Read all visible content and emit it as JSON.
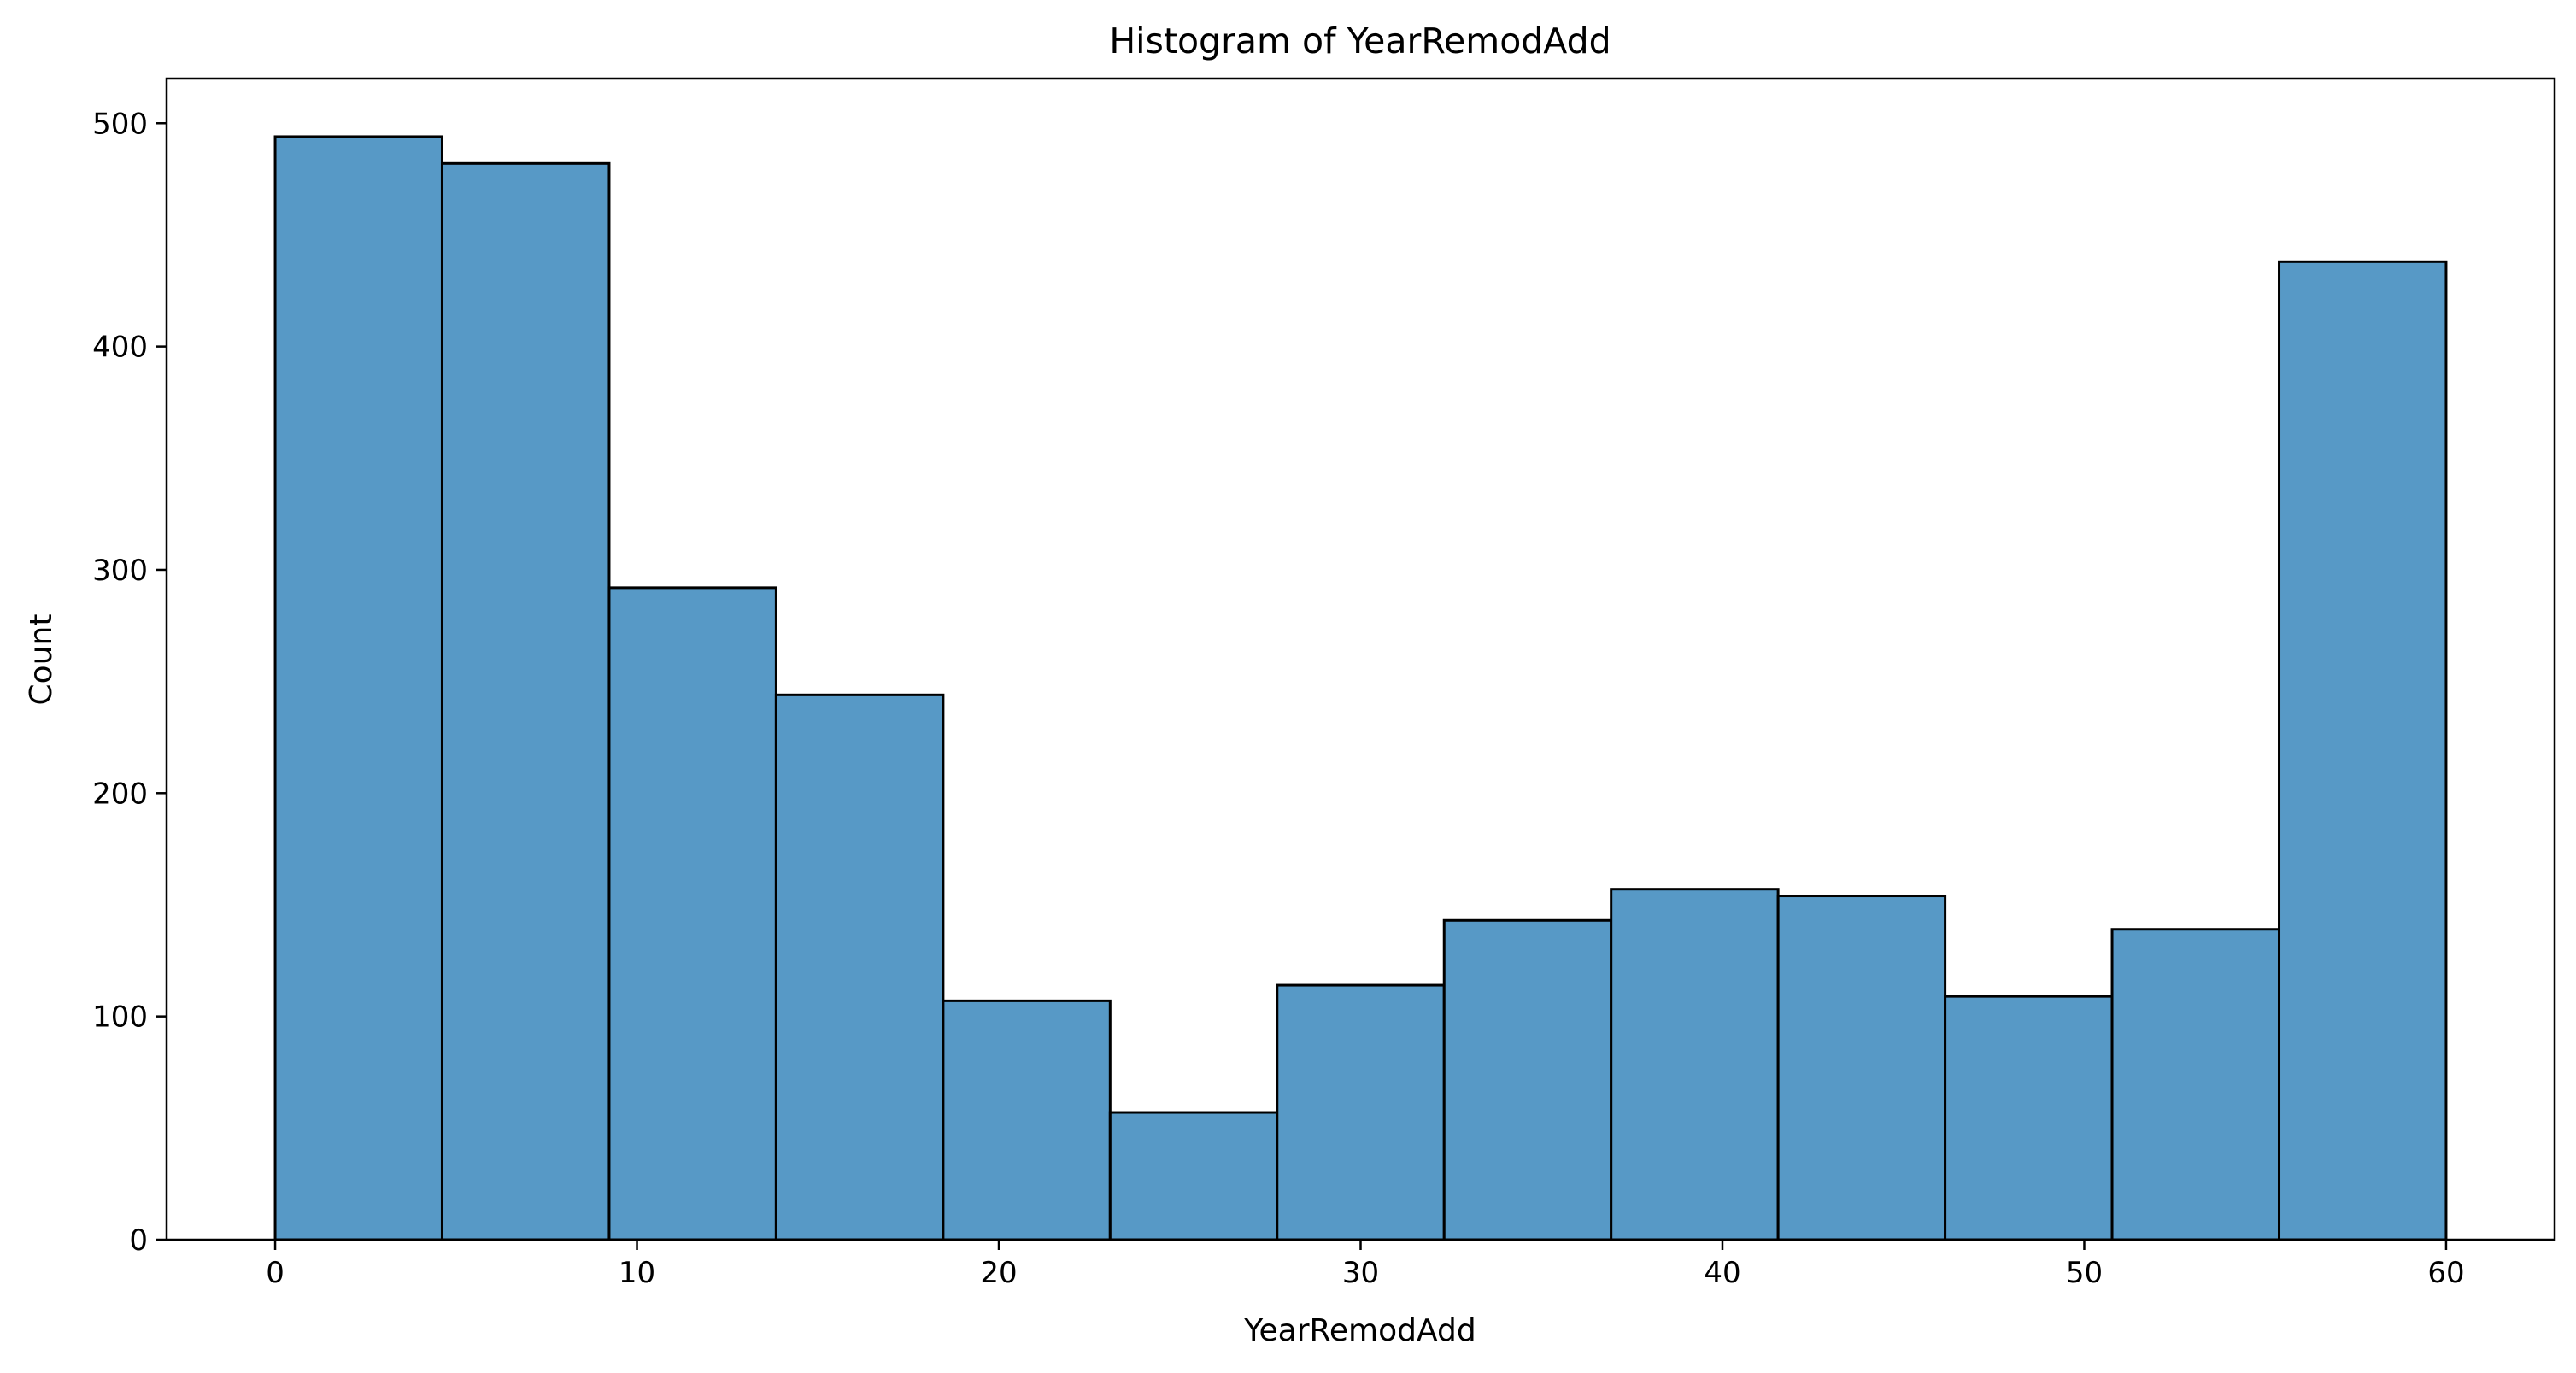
{
  "chart_data": {
    "type": "bar",
    "title": "Histogram of YearRemodAdd",
    "xlabel": "YearRemodAdd",
    "ylabel": "Count",
    "xlim": [
      -3,
      63
    ],
    "ylim": [
      0,
      520
    ],
    "xticks": [
      0,
      10,
      20,
      30,
      40,
      50,
      60
    ],
    "yticks": [
      0,
      100,
      200,
      300,
      400,
      500
    ],
    "grid": false,
    "bar_color": "#5799c6",
    "edge_color": "#000000",
    "bins": [
      {
        "start": 0.0,
        "end": 4.615,
        "count": 494
      },
      {
        "start": 4.615,
        "end": 9.231,
        "count": 482
      },
      {
        "start": 9.231,
        "end": 13.846,
        "count": 292
      },
      {
        "start": 13.846,
        "end": 18.462,
        "count": 244
      },
      {
        "start": 18.462,
        "end": 23.077,
        "count": 107
      },
      {
        "start": 23.077,
        "end": 27.692,
        "count": 57
      },
      {
        "start": 27.692,
        "end": 32.308,
        "count": 114
      },
      {
        "start": 32.308,
        "end": 36.923,
        "count": 143
      },
      {
        "start": 36.923,
        "end": 41.538,
        "count": 157
      },
      {
        "start": 41.538,
        "end": 46.154,
        "count": 154
      },
      {
        "start": 46.154,
        "end": 50.769,
        "count": 109
      },
      {
        "start": 50.769,
        "end": 55.385,
        "count": 139
      },
      {
        "start": 55.385,
        "end": 60.0,
        "count": 438
      }
    ]
  }
}
